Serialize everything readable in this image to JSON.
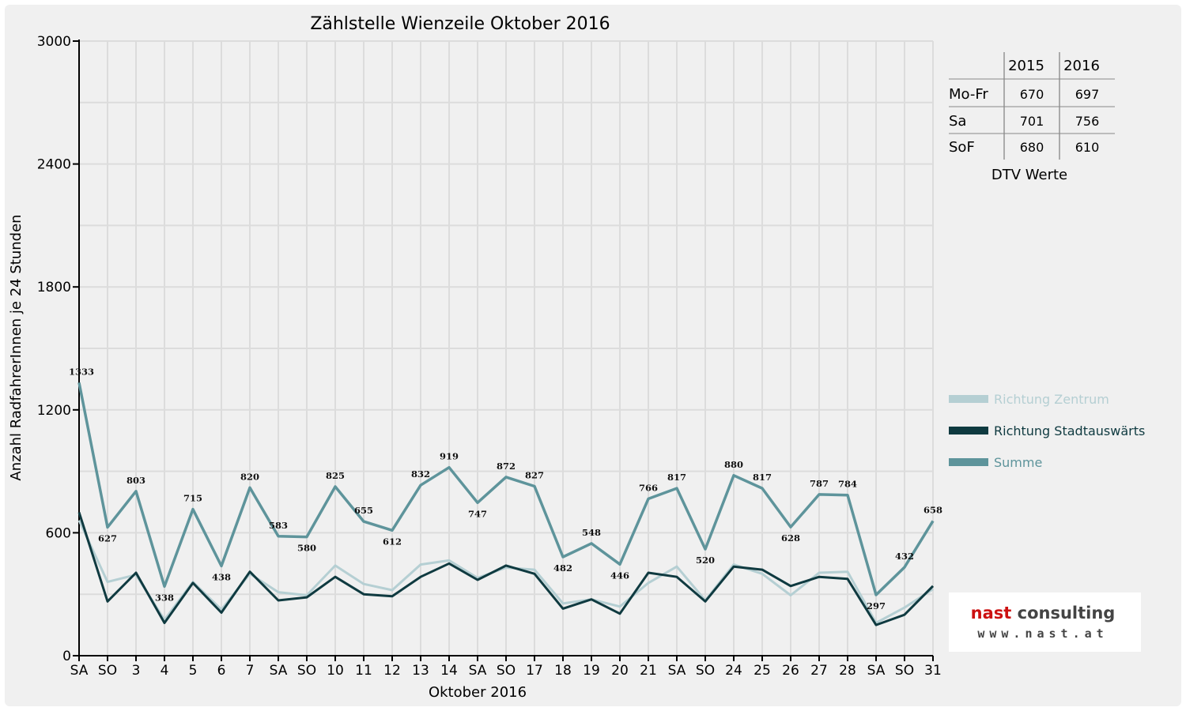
{
  "chart_data": {
    "type": "line",
    "title": "Zählstelle Wienzeile Oktober 2016",
    "xlabel": "Oktober 2016",
    "ylabel": "Anzahl RadfahrerInnen je 24 Stunden",
    "ylim": [
      0,
      3000
    ],
    "yticks": [
      "0",
      "600",
      "1200",
      "1800",
      "2400",
      "3000"
    ],
    "ytick_values": [
      0,
      600,
      1200,
      1800,
      2400,
      3000
    ],
    "grid": true,
    "legend_position": "right",
    "categories": [
      "SA",
      "SO",
      "3",
      "4",
      "5",
      "6",
      "7",
      "SA",
      "SO",
      "10",
      "11",
      "12",
      "13",
      "14",
      "SA",
      "SO",
      "17",
      "18",
      "19",
      "20",
      "21",
      "SA",
      "SO",
      "24",
      "25",
      "26",
      "27",
      "28",
      "SA",
      "SO",
      "31"
    ],
    "highlight_categories": [
      1,
      8,
      15,
      22,
      25,
      29
    ],
    "series": [
      {
        "name": "Richtung Zentrum",
        "color": "#b5cfd3",
        "values": [
          660,
          360,
          395,
          175,
          360,
          225,
          400,
          310,
          295,
          440,
          350,
          320,
          445,
          465,
          380,
          430,
          420,
          255,
          275,
          240,
          355,
          435,
          270,
          445,
          400,
          295,
          405,
          410,
          160,
          235,
          325
        ]
      },
      {
        "name": "Richtung Stadtauswärts",
        "color": "#0f3a40",
        "values": [
          700,
          265,
          405,
          160,
          355,
          210,
          410,
          270,
          285,
          385,
          300,
          290,
          385,
          450,
          370,
          440,
          400,
          230,
          275,
          205,
          405,
          385,
          265,
          435,
          420,
          340,
          385,
          375,
          150,
          200,
          340
        ]
      },
      {
        "name": "Summe",
        "color": "#5e949b",
        "values": [
          1333,
          627,
          803,
          338,
          715,
          438,
          820,
          583,
          580,
          825,
          655,
          612,
          832,
          919,
          747,
          872,
          827,
          482,
          548,
          446,
          766,
          817,
          520,
          880,
          817,
          628,
          787,
          784,
          297,
          432,
          658
        ]
      }
    ],
    "data_labels": [
      "1333",
      "627",
      "803",
      "338",
      "715",
      "438",
      "820",
      "583",
      "580",
      "825",
      "655",
      "612",
      "832",
      "919",
      "747",
      "872",
      "827",
      "482",
      "548",
      "446",
      "766",
      "817",
      "520",
      "880",
      "817",
      "628",
      "787",
      "784",
      "297",
      "432",
      "658"
    ]
  },
  "dtv_table": {
    "caption": "DTV Werte",
    "columns": [
      "2015",
      "2016"
    ],
    "rows": [
      {
        "label": "Mo-Fr",
        "values": [
          "670",
          "697"
        ]
      },
      {
        "label": "Sa",
        "values": [
          "701",
          "756"
        ]
      },
      {
        "label": "SoF",
        "values": [
          "680",
          "610"
        ]
      }
    ]
  },
  "logo": {
    "name": "nast consulting",
    "url_text": "www.nast.at"
  },
  "colors": {
    "highlight_tick": "#e00000",
    "logo_red": "#cc1111",
    "logo_dark": "#444444"
  }
}
